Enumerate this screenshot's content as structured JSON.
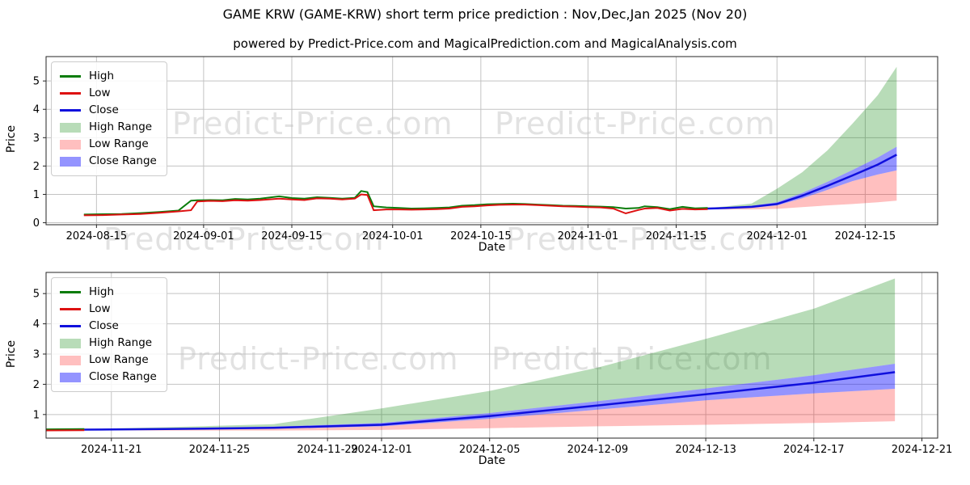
{
  "header": {
    "title": "GAME KRW (GAME-KRW) short term price prediction : Nov,Dec,Jan 2025 (Nov 20)",
    "subtitle": "powered by Predict-Price.com and MagicalPrediction.com and MagicalAnalysis.com"
  },
  "watermark": {
    "text": "Predict-Price.com"
  },
  "colors": {
    "high_line": "#0a7c0a",
    "low_line": "#dd1111",
    "close_line": "#1010dd",
    "high_fill": "rgba(0,128,0,0.28)",
    "low_fill": "rgba(255,0,0,0.25)",
    "close_fill": "rgba(0,0,255,0.42)",
    "grid": "#c3c3c3",
    "axis": "#262626",
    "tick_text": "#000000"
  },
  "legend": {
    "items": [
      {
        "label": "High",
        "swatch": "line",
        "color": "high_line"
      },
      {
        "label": "Low",
        "swatch": "line",
        "color": "low_line"
      },
      {
        "label": "Close",
        "swatch": "line",
        "color": "close_line"
      },
      {
        "label": "High Range",
        "swatch": "patch",
        "color": "high_fill"
      },
      {
        "label": "Low Range",
        "swatch": "patch",
        "color": "low_fill"
      },
      {
        "label": "Close Range",
        "swatch": "patch",
        "color": "close_fill"
      }
    ]
  },
  "series_data": {
    "history": {
      "columns": [
        "date",
        "high",
        "low"
      ],
      "rows": [
        [
          "2024-08-13",
          0.29,
          0.26
        ],
        [
          "2024-08-16",
          0.3,
          0.27
        ],
        [
          "2024-08-19",
          0.31,
          0.29
        ],
        [
          "2024-08-22",
          0.34,
          0.31
        ],
        [
          "2024-08-25",
          0.38,
          0.35
        ],
        [
          "2024-08-28",
          0.43,
          0.4
        ],
        [
          "2024-08-30",
          0.78,
          0.44
        ],
        [
          "2024-08-31",
          0.79,
          0.75
        ],
        [
          "2024-09-02",
          0.8,
          0.77
        ],
        [
          "2024-09-04",
          0.79,
          0.76
        ],
        [
          "2024-09-06",
          0.84,
          0.79
        ],
        [
          "2024-09-08",
          0.82,
          0.78
        ],
        [
          "2024-09-10",
          0.85,
          0.8
        ],
        [
          "2024-09-13",
          0.93,
          0.85
        ],
        [
          "2024-09-15",
          0.87,
          0.82
        ],
        [
          "2024-09-17",
          0.85,
          0.8
        ],
        [
          "2024-09-19",
          0.9,
          0.86
        ],
        [
          "2024-09-21",
          0.88,
          0.85
        ],
        [
          "2024-09-23",
          0.85,
          0.82
        ],
        [
          "2024-09-25",
          0.88,
          0.85
        ],
        [
          "2024-09-26",
          1.12,
          1.0
        ],
        [
          "2024-09-27",
          1.08,
          0.98
        ],
        [
          "2024-09-28",
          0.58,
          0.44
        ],
        [
          "2024-09-30",
          0.54,
          0.47
        ],
        [
          "2024-10-02",
          0.52,
          0.47
        ],
        [
          "2024-10-04",
          0.5,
          0.46
        ],
        [
          "2024-10-06",
          0.51,
          0.47
        ],
        [
          "2024-10-08",
          0.52,
          0.48
        ],
        [
          "2024-10-10",
          0.54,
          0.5
        ],
        [
          "2024-10-12",
          0.6,
          0.56
        ],
        [
          "2024-10-14",
          0.62,
          0.58
        ],
        [
          "2024-10-16",
          0.65,
          0.61
        ],
        [
          "2024-10-18",
          0.66,
          0.63
        ],
        [
          "2024-10-20",
          0.67,
          0.64
        ],
        [
          "2024-10-22",
          0.66,
          0.64
        ],
        [
          "2024-10-24",
          0.64,
          0.62
        ],
        [
          "2024-10-26",
          0.62,
          0.6
        ],
        [
          "2024-10-28",
          0.6,
          0.58
        ],
        [
          "2024-10-30",
          0.59,
          0.57
        ],
        [
          "2024-11-01",
          0.58,
          0.55
        ],
        [
          "2024-11-03",
          0.57,
          0.54
        ],
        [
          "2024-11-05",
          0.55,
          0.5
        ],
        [
          "2024-11-07",
          0.5,
          0.33
        ],
        [
          "2024-11-09",
          0.52,
          0.45
        ],
        [
          "2024-11-10",
          0.58,
          0.5
        ],
        [
          "2024-11-12",
          0.55,
          0.52
        ],
        [
          "2024-11-14",
          0.48,
          0.43
        ],
        [
          "2024-11-16",
          0.56,
          0.49
        ],
        [
          "2024-11-18",
          0.51,
          0.47
        ],
        [
          "2024-11-20",
          0.52,
          0.48
        ]
      ]
    },
    "prediction": {
      "columns": [
        "date",
        "close",
        "close_low",
        "close_high",
        "high_max",
        "low_min"
      ],
      "rows": [
        [
          "2024-11-20",
          0.5,
          0.5,
          0.5,
          0.52,
          0.48
        ],
        [
          "2024-11-23",
          0.52,
          0.5,
          0.54,
          0.58,
          0.47
        ],
        [
          "2024-11-27",
          0.56,
          0.53,
          0.6,
          0.68,
          0.47
        ],
        [
          "2024-12-01",
          0.66,
          0.61,
          0.72,
          1.2,
          0.49
        ],
        [
          "2024-12-05",
          0.95,
          0.86,
          1.05,
          1.78,
          0.55
        ],
        [
          "2024-12-09",
          1.3,
          1.16,
          1.44,
          2.55,
          0.61
        ],
        [
          "2024-12-13",
          1.67,
          1.47,
          1.86,
          3.5,
          0.66
        ],
        [
          "2024-12-17",
          2.05,
          1.7,
          2.3,
          4.5,
          0.72
        ],
        [
          "2024-12-20",
          2.4,
          1.85,
          2.68,
          5.5,
          0.78
        ]
      ]
    }
  },
  "chart_data": [
    {
      "type": "line",
      "panel": "top",
      "xlabel": "Date",
      "ylabel": "Price",
      "x_start": "2024-08-07T00:00:00",
      "x_end": "2024-12-26T12:00:00",
      "ylim": [
        -0.07,
        5.86
      ],
      "yticks": [
        0,
        1,
        2,
        3,
        4,
        5
      ],
      "xticks": [
        "2024-08-15",
        "2024-09-01",
        "2024-09-15",
        "2024-10-01",
        "2024-10-15",
        "2024-11-01",
        "2024-11-15",
        "2024-12-01",
        "2024-12-15"
      ],
      "grid": true,
      "legend_position": "upper-left",
      "series": [
        "history.high",
        "history.low",
        "prediction.close",
        "prediction.high_range",
        "prediction.low_range",
        "prediction.close_range"
      ]
    },
    {
      "type": "line",
      "panel": "bottom",
      "xlabel": "Date",
      "ylabel": "Price",
      "x_start": "2024-11-18T14:00:00",
      "x_end": "2024-12-21T14:00:00",
      "ylim": [
        0.22,
        5.7
      ],
      "yticks": [
        1,
        2,
        3,
        4,
        5
      ],
      "xticks": [
        "2024-11-21",
        "2024-11-25",
        "2024-11-29",
        "2024-12-01",
        "2024-12-05",
        "2024-12-09",
        "2024-12-13",
        "2024-12-17",
        "2024-12-21"
      ],
      "grid": true,
      "legend_position": "upper-left",
      "series": [
        "history.high",
        "history.low",
        "prediction.close",
        "prediction.high_range",
        "prediction.low_range",
        "prediction.close_range"
      ]
    }
  ]
}
